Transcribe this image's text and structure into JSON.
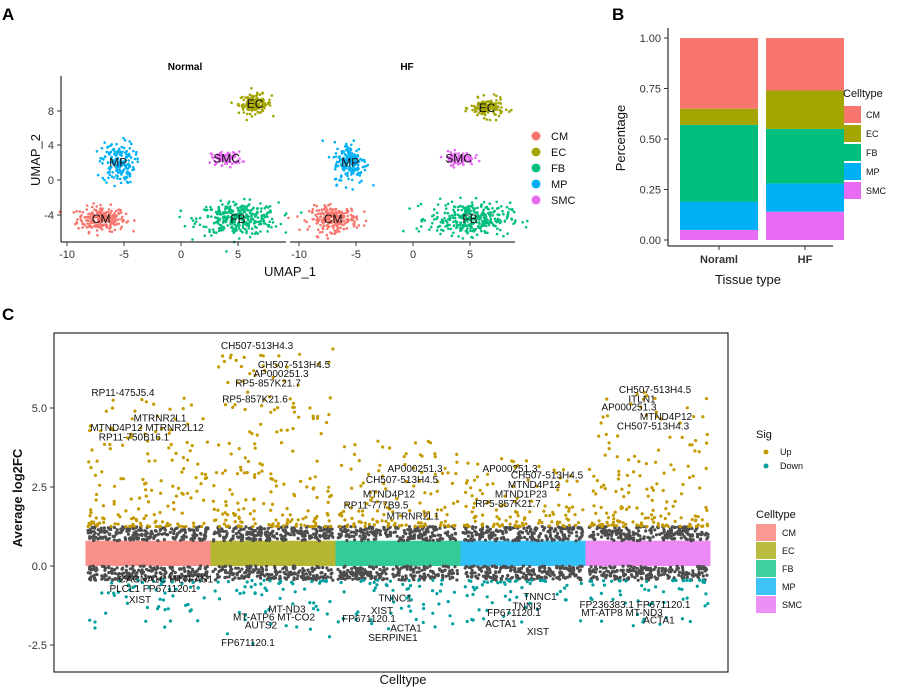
{
  "colors": {
    "CM": "#F8766D",
    "EC": "#A3A500",
    "FB": "#00BF7D",
    "MP": "#00B0F6",
    "SMC": "#E76BF3",
    "up": "#C49A00",
    "down": "#00A0A0",
    "ns": "#4D4D4D"
  },
  "panel_a": {
    "label": "A",
    "titles": [
      "Normal",
      "HF"
    ],
    "xlabel": "UMAP_1",
    "ylabel": "UMAP_2",
    "xticks_left": [
      "-10",
      "-5",
      "0",
      "5"
    ],
    "xticks_right": [
      "-10",
      "-5",
      "0",
      "5"
    ],
    "yticks": [
      "8",
      "4",
      "0",
      "-4"
    ],
    "clusters": [
      "CM",
      "EC",
      "FB",
      "MP",
      "SMC"
    ],
    "legend": [
      "CM",
      "EC",
      "FB",
      "MP",
      "SMC"
    ]
  },
  "panel_b": {
    "label": "B",
    "xlabel": "Tissue type",
    "ylabel": "Percentage",
    "legend_title": "Celltype",
    "legend": [
      "CM",
      "EC",
      "FB",
      "MP",
      "SMC"
    ]
  },
  "panel_c": {
    "label": "C",
    "xlabel": "Celltype",
    "ylabel": "Average log2FC",
    "sig_title": "Sig",
    "sig_items": [
      "Up",
      "Down"
    ],
    "celltype_title": "Celltype",
    "celltype_items": [
      "CM",
      "EC",
      "FB",
      "MP",
      "SMC"
    ]
  },
  "chart_data": [
    {
      "type": "scatter",
      "title": "UMAP by condition",
      "panels": [
        "Normal",
        "HF"
      ],
      "xlabel": "UMAP_1",
      "ylabel": "UMAP_2",
      "xlim": [
        -11,
        9
      ],
      "ylim": [
        -7,
        11
      ],
      "cluster_centers": [
        {
          "name": "CM",
          "Normal": [
            -7,
            -4.5
          ],
          "HF": [
            -7,
            -4.5
          ]
        },
        {
          "name": "EC",
          "Normal": [
            6.5,
            8.8
          ],
          "HF": [
            6.5,
            8.3
          ]
        },
        {
          "name": "FB",
          "Normal": [
            5,
            -4.5
          ],
          "HF": [
            5,
            -4.5
          ]
        },
        {
          "name": "MP",
          "Normal": [
            -5.5,
            2
          ],
          "HF": [
            -5.5,
            2
          ]
        },
        {
          "name": "SMC",
          "Normal": [
            4,
            2.5
          ],
          "HF": [
            4,
            2.5
          ]
        }
      ]
    },
    {
      "type": "bar",
      "stacked": true,
      "title": "",
      "categories": [
        "Noraml",
        "HF"
      ],
      "xlabel": "Tissue type",
      "ylabel": "Percentage",
      "ylim": [
        0,
        1
      ],
      "yticks": [
        "0.00",
        "0.25",
        "0.50",
        "0.75",
        "1.00"
      ],
      "series": [
        {
          "name": "SMC",
          "values": [
            0.05,
            0.14
          ]
        },
        {
          "name": "MP",
          "values": [
            0.14,
            0.14
          ]
        },
        {
          "name": "FB",
          "values": [
            0.38,
            0.27
          ]
        },
        {
          "name": "EC",
          "values": [
            0.08,
            0.19
          ]
        },
        {
          "name": "CM",
          "values": [
            0.35,
            0.26
          ]
        }
      ]
    },
    {
      "type": "scatter",
      "title": "",
      "categories": [
        "CM",
        "EC",
        "FB",
        "MP",
        "SMC"
      ],
      "xlabel": "Celltype",
      "ylabel": "Average log2FC",
      "ylim": [
        -3.0,
        7.0
      ],
      "yticks": [
        "-2.5",
        "0.0",
        "2.5",
        "5.0"
      ],
      "band": [
        0,
        0.8
      ],
      "max_up": [
        5.4,
        7.0,
        4.0,
        3.4,
        5.6
      ],
      "max_down": [
        -2.0,
        -2.5,
        -2.1,
        -1.8,
        -2.0
      ],
      "annotations": [
        {
          "text": "RP11-475J5.4",
          "cat": 0,
          "y": 5.5
        },
        {
          "text": "MTRNR2L1",
          "cat": 0,
          "y": 4.7
        },
        {
          "text": "MTND4P12 MTRNR2L12",
          "cat": 0,
          "y": 4.4
        },
        {
          "text": "RP11-750B16.1",
          "cat": 0,
          "y": 4.1
        },
        {
          "text": "CACNA1C ITLN-AS1",
          "cat": 0,
          "y": -0.4
        },
        {
          "text": "PLCL1 FP671120.1",
          "cat": 0,
          "y": -0.7
        },
        {
          "text": "XIST",
          "cat": 0,
          "y": -1.05
        },
        {
          "text": "CH507-513H4.3",
          "cat": 1,
          "y": 7.0
        },
        {
          "text": "CH507-513H4.5",
          "cat": 1,
          "y": 6.4
        },
        {
          "text": "AP000251.3",
          "cat": 1,
          "y": 6.1
        },
        {
          "text": "RP5-857K21.7",
          "cat": 1,
          "y": 5.8
        },
        {
          "text": "RP5-857K21.6",
          "cat": 1,
          "y": 5.3
        },
        {
          "text": "MT-ND3",
          "cat": 1,
          "y": -1.35
        },
        {
          "text": "MT-ATP6 MT-CO2",
          "cat": 1,
          "y": -1.6
        },
        {
          "text": "AUTS2",
          "cat": 1,
          "y": -1.85
        },
        {
          "text": "FP671120.1",
          "cat": 1,
          "y": -2.4
        },
        {
          "text": "AP000251.3",
          "cat": 2,
          "y": 3.1
        },
        {
          "text": "CH507-513H4.5",
          "cat": 2,
          "y": 2.75
        },
        {
          "text": "MTND4P12",
          "cat": 2,
          "y": 2.3
        },
        {
          "text": "RP11-777B9.5",
          "cat": 2,
          "y": 1.95
        },
        {
          "text": "MTRNR2L1",
          "cat": 2,
          "y": 1.6
        },
        {
          "text": "TNNC1",
          "cat": 2,
          "y": -1.0
        },
        {
          "text": "XIST",
          "cat": 2,
          "y": -1.4
        },
        {
          "text": "FP671120.1",
          "cat": 2,
          "y": -1.65
        },
        {
          "text": "ACTA1",
          "cat": 2,
          "y": -1.95
        },
        {
          "text": "SERPINE1",
          "cat": 2,
          "y": -2.25
        },
        {
          "text": "AP000251.3",
          "cat": 3,
          "y": 3.1
        },
        {
          "text": "CH507-513H4.5",
          "cat": 3,
          "y": 2.9
        },
        {
          "text": "MTND4P12",
          "cat": 3,
          "y": 2.6
        },
        {
          "text": "MTND1P23",
          "cat": 3,
          "y": 2.3
        },
        {
          "text": "RP5-857K21.7",
          "cat": 3,
          "y": 2.0
        },
        {
          "text": "TNNC1",
          "cat": 3,
          "y": -0.95
        },
        {
          "text": "TNNI3",
          "cat": 3,
          "y": -1.25
        },
        {
          "text": "FP671120.1",
          "cat": 3,
          "y": -1.45
        },
        {
          "text": "ACTA1",
          "cat": 3,
          "y": -1.8
        },
        {
          "text": "XIST",
          "cat": 3,
          "y": -2.05
        },
        {
          "text": "CH507-513H4.5",
          "cat": 4,
          "y": 5.6
        },
        {
          "text": "ITLN1",
          "cat": 4,
          "y": 5.3
        },
        {
          "text": "AP000251.3",
          "cat": 4,
          "y": 5.05
        },
        {
          "text": "MTND4P12",
          "cat": 4,
          "y": 4.75
        },
        {
          "text": "CH507-513H4.3",
          "cat": 4,
          "y": 4.45
        },
        {
          "text": "FP236383.1 FP671120.1",
          "cat": 4,
          "y": -1.2
        },
        {
          "text": "MT-ATP8 MT-ND3",
          "cat": 4,
          "y": -1.45
        },
        {
          "text": "ACTA1",
          "cat": 4,
          "y": -1.7
        }
      ]
    }
  ]
}
